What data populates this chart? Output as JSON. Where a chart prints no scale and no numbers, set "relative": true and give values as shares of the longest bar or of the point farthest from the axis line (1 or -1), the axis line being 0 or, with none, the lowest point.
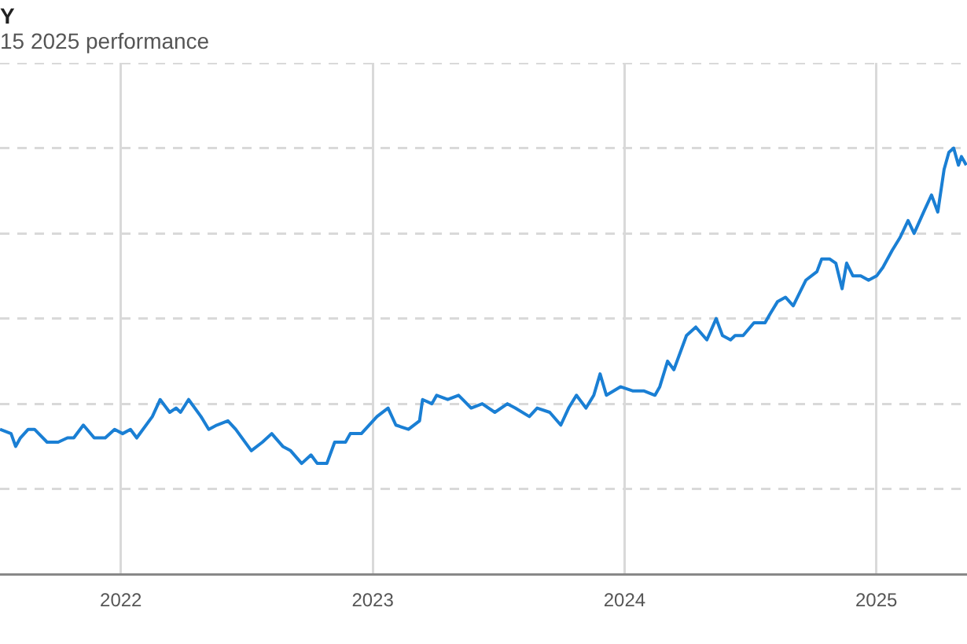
{
  "chart_data": {
    "type": "line",
    "title": "Y",
    "subtitle": "15 2025 performance",
    "relative": true,
    "grid": true,
    "legend": false,
    "marker": "none",
    "line_style": "solid",
    "xlim": [
      2021.52,
      2025.36
    ],
    "xticks": [
      2022,
      2023,
      2024,
      2025
    ],
    "series": [
      {
        "color": "#1a7fd4",
        "x": [
          2021.52,
          2021.564,
          2021.582,
          2021.601,
          2021.632,
          2021.657,
          2021.707,
          2021.751,
          2021.788,
          2021.813,
          2021.851,
          2021.894,
          2021.938,
          2021.975,
          2022.007,
          2022.038,
          2022.063,
          2022.125,
          2022.156,
          2022.194,
          2022.219,
          2022.237,
          2022.269,
          2022.318,
          2022.349,
          2022.381,
          2022.425,
          2022.456,
          2022.518,
          2022.562,
          2022.599,
          2022.643,
          2022.674,
          2022.718,
          2022.755,
          2022.78,
          2022.818,
          2022.849,
          2022.892,
          2022.911,
          2022.955,
          2023.017,
          2023.061,
          2023.092,
          2023.142,
          2023.186,
          2023.198,
          2023.235,
          2023.254,
          2023.298,
          2023.341,
          2023.391,
          2023.435,
          2023.485,
          2023.535,
          2023.566,
          2023.622,
          2023.653,
          2023.703,
          2023.747,
          2023.778,
          2023.809,
          2023.847,
          2023.878,
          2023.903,
          2023.928,
          2023.984,
          2024.034,
          2024.078,
          2024.121,
          2024.14,
          2024.171,
          2024.196,
          2024.246,
          2024.283,
          2024.327,
          2024.364,
          2024.389,
          2024.421,
          2024.439,
          2024.471,
          2024.514,
          2024.558,
          2024.577,
          2024.608,
          2024.639,
          2024.67,
          2024.72,
          2024.764,
          2024.783,
          2024.814,
          2024.839,
          2024.864,
          2024.882,
          2024.907,
          2024.938,
          2024.969,
          2025.001,
          2025.026,
          2025.063,
          2025.094,
          2025.126,
          2025.15,
          2025.188,
          2025.219,
          2025.244,
          2025.269,
          2025.288,
          2025.307,
          2025.326,
          2025.338,
          2025.357
        ],
        "values": [
          0.34,
          0.33,
          0.3,
          0.32,
          0.34,
          0.34,
          0.31,
          0.31,
          0.32,
          0.32,
          0.35,
          0.32,
          0.32,
          0.34,
          0.33,
          0.34,
          0.32,
          0.37,
          0.41,
          0.38,
          0.39,
          0.38,
          0.41,
          0.37,
          0.34,
          0.35,
          0.36,
          0.34,
          0.29,
          0.31,
          0.33,
          0.3,
          0.29,
          0.26,
          0.28,
          0.26,
          0.26,
          0.31,
          0.31,
          0.33,
          0.33,
          0.37,
          0.39,
          0.35,
          0.34,
          0.36,
          0.41,
          0.4,
          0.42,
          0.41,
          0.42,
          0.39,
          0.4,
          0.38,
          0.4,
          0.39,
          0.37,
          0.39,
          0.38,
          0.35,
          0.39,
          0.42,
          0.39,
          0.42,
          0.47,
          0.42,
          0.44,
          0.43,
          0.43,
          0.42,
          0.44,
          0.5,
          0.48,
          0.56,
          0.58,
          0.55,
          0.6,
          0.56,
          0.55,
          0.56,
          0.56,
          0.59,
          0.59,
          0.61,
          0.64,
          0.65,
          0.63,
          0.69,
          0.71,
          0.74,
          0.74,
          0.73,
          0.67,
          0.73,
          0.7,
          0.7,
          0.69,
          0.7,
          0.72,
          0.76,
          0.79,
          0.83,
          0.8,
          0.85,
          0.89,
          0.85,
          0.95,
          0.99,
          1,
          0.96,
          0.98,
          0.96
        ]
      }
    ]
  }
}
